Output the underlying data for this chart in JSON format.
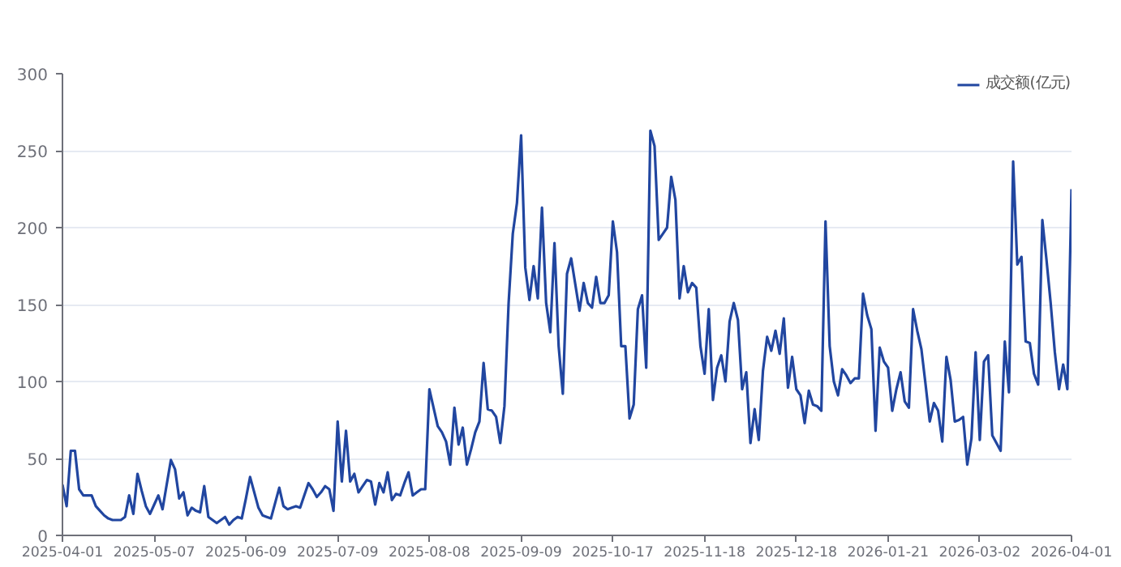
{
  "chart_data": {
    "type": "line",
    "categories": [
      "2025-04-01",
      null,
      null,
      null,
      null,
      null,
      null,
      null,
      null,
      null,
      null,
      null,
      null,
      null,
      null,
      null,
      null,
      null,
      null,
      null,
      null,
      null,
      "2025-05-07",
      null,
      null,
      null,
      null,
      null,
      null,
      null,
      null,
      null,
      null,
      null,
      null,
      null,
      null,
      null,
      null,
      null,
      null,
      null,
      null,
      null,
      "2025-06-09",
      null,
      null,
      null,
      null,
      null,
      null,
      null,
      null,
      null,
      null,
      null,
      null,
      null,
      null,
      null,
      null,
      null,
      null,
      null,
      null,
      null,
      "2025-07-09",
      null,
      null,
      null,
      null,
      null,
      null,
      null,
      null,
      null,
      null,
      null,
      null,
      null,
      null,
      null,
      null,
      null,
      null,
      null,
      null,
      null,
      "2025-08-08",
      null,
      null,
      null,
      null,
      null,
      null,
      null,
      null,
      null,
      null,
      null,
      null,
      null,
      null,
      null,
      null,
      null,
      null,
      null,
      null,
      null,
      "2025-09-09",
      null,
      null,
      null,
      null,
      null,
      null,
      null,
      null,
      null,
      null,
      null,
      null,
      null,
      null,
      null,
      null,
      null,
      null,
      null,
      null,
      null,
      "2025-10-17",
      null,
      null,
      null,
      null,
      null,
      null,
      null,
      null,
      null,
      null,
      null,
      null,
      null,
      null,
      null,
      null,
      null,
      null,
      null,
      null,
      null,
      "2025-11-18",
      null,
      null,
      null,
      null,
      null,
      null,
      null,
      null,
      null,
      null,
      null,
      null,
      null,
      null,
      null,
      null,
      null,
      null,
      null,
      null,
      null,
      "2025-12-18",
      null,
      null,
      null,
      null,
      null,
      null,
      null,
      null,
      null,
      null,
      null,
      null,
      null,
      null,
      null,
      null,
      null,
      null,
      null,
      null,
      null,
      "2026-01-21",
      null,
      null,
      null,
      null,
      null,
      null,
      null,
      null,
      null,
      null,
      null,
      null,
      null,
      null,
      null,
      null,
      null,
      null,
      null,
      null,
      null,
      "2026-03-02",
      null,
      null,
      null,
      null,
      null,
      null,
      null,
      null,
      null,
      null,
      null,
      null,
      null,
      null,
      null,
      null,
      null,
      null,
      null,
      null,
      null,
      "2026-04-01"
    ],
    "series": [
      {
        "name": "成交额(亿元)",
        "color": "#2146a0",
        "values": [
          33,
          19,
          55,
          55,
          30,
          26,
          26,
          26,
          19,
          16,
          13,
          11,
          10,
          10,
          10,
          12,
          26,
          14,
          40,
          29,
          19,
          14,
          20,
          26,
          17,
          33,
          49,
          43,
          24,
          28,
          13,
          18,
          16,
          15,
          32,
          12,
          10,
          8,
          10,
          12,
          7,
          10,
          12,
          11,
          24,
          38,
          28,
          18,
          13,
          12,
          11,
          21,
          31,
          19,
          17,
          18,
          19,
          18,
          26,
          34,
          30,
          25,
          28,
          32,
          30,
          16,
          74,
          35,
          68,
          35,
          40,
          28,
          32,
          36,
          35,
          20,
          34,
          28,
          41,
          23,
          27,
          26,
          34,
          41,
          26,
          28,
          30,
          30,
          95,
          83,
          71,
          67,
          61,
          46,
          83,
          59,
          70,
          46,
          56,
          67,
          74,
          112,
          82,
          81,
          77,
          60,
          84,
          151,
          196,
          216,
          260,
          174,
          153,
          175,
          154,
          213,
          151,
          132,
          190,
          123,
          92,
          170,
          180,
          163,
          146,
          164,
          151,
          148,
          168,
          151,
          151,
          156,
          204,
          184,
          123,
          123,
          76,
          85,
          147,
          156,
          109,
          263,
          253,
          192,
          196,
          200,
          233,
          218,
          154,
          175,
          158,
          164,
          161,
          123,
          105,
          147,
          88,
          109,
          117,
          100,
          139,
          151,
          140,
          95,
          106,
          60,
          82,
          62,
          107,
          129,
          120,
          133,
          118,
          141,
          96,
          116,
          95,
          91,
          73,
          94,
          85,
          84,
          81,
          204,
          123,
          100,
          91,
          108,
          104,
          99,
          102,
          102,
          157,
          143,
          134,
          68,
          122,
          113,
          109,
          81,
          95,
          106,
          87,
          83,
          147,
          133,
          121,
          98,
          74,
          86,
          81,
          61,
          116,
          101,
          74,
          75,
          77,
          46,
          63,
          119,
          62,
          113,
          117,
          65,
          60,
          55,
          126,
          93,
          243,
          176,
          181,
          126,
          125,
          105,
          98,
          205,
          179,
          151,
          119,
          95,
          111,
          95,
          225
        ]
      }
    ],
    "ylim": [
      0,
      300
    ],
    "yticks": [
      0,
      50,
      100,
      150,
      200,
      250,
      300
    ],
    "grid": "y",
    "legend": "top right",
    "marker": "none",
    "line_style": "solid"
  }
}
